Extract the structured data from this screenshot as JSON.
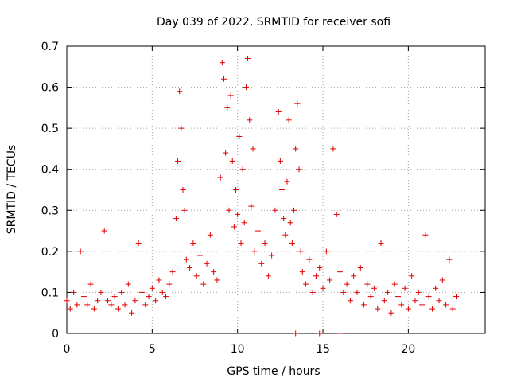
{
  "chart_data": {
    "type": "scatter",
    "title": "Day 039 of 2022, SRMTID for receiver sofi",
    "xlabel": "GPS time / hours",
    "ylabel": "SRMTID / TECUs",
    "xlim": [
      0,
      24.5
    ],
    "ylim": [
      0,
      0.7
    ],
    "xticks": [
      0,
      5,
      10,
      15,
      20
    ],
    "xtick_labels": [
      "0",
      "5",
      "10",
      "15",
      "20"
    ],
    "yticks": [
      0,
      0.1,
      0.2,
      0.3,
      0.4,
      0.5,
      0.6,
      0.7
    ],
    "ytick_labels": [
      "0",
      "0.1",
      "0.2",
      "0.3",
      "0.4",
      "0.5",
      "0.6",
      "0.7"
    ],
    "grid": true,
    "marker": "+",
    "series_color": "#e00000",
    "series": [
      {
        "name": "SRMTID",
        "x": [
          0.0,
          0.2,
          0.4,
          0.6,
          0.8,
          1.0,
          1.2,
          1.4,
          1.6,
          1.8,
          2.0,
          2.2,
          2.4,
          2.6,
          2.8,
          3.0,
          3.2,
          3.4,
          3.6,
          3.8,
          4.0,
          4.2,
          4.4,
          4.6,
          4.8,
          5.0,
          5.2,
          5.4,
          5.6,
          5.8,
          6.0,
          6.2,
          6.4,
          6.5,
          6.6,
          6.7,
          6.8,
          6.9,
          7.0,
          7.2,
          7.4,
          7.6,
          7.8,
          8.0,
          8.2,
          8.4,
          8.6,
          8.8,
          9.0,
          9.1,
          9.2,
          9.3,
          9.4,
          9.5,
          9.6,
          9.7,
          9.8,
          9.9,
          10.0,
          10.1,
          10.2,
          10.3,
          10.4,
          10.5,
          10.6,
          10.7,
          10.8,
          10.9,
          11.0,
          11.2,
          11.4,
          11.6,
          11.8,
          12.0,
          12.2,
          12.4,
          12.5,
          12.6,
          12.7,
          12.8,
          12.9,
          13.0,
          13.1,
          13.2,
          13.3,
          13.4,
          13.5,
          13.6,
          13.7,
          13.8,
          14.0,
          14.2,
          14.4,
          14.6,
          14.8,
          15.0,
          15.2,
          15.4,
          15.6,
          15.8,
          16.0,
          16.2,
          16.4,
          16.6,
          16.8,
          17.0,
          17.2,
          17.4,
          17.6,
          17.8,
          18.0,
          18.2,
          18.4,
          18.6,
          18.8,
          19.0,
          19.2,
          19.4,
          19.6,
          19.8,
          20.0,
          20.2,
          20.4,
          20.6,
          20.8,
          21.0,
          21.2,
          21.4,
          21.6,
          21.8,
          22.0,
          22.2,
          22.4,
          22.6,
          22.8,
          13.4,
          14.8,
          16.0
        ],
        "y": [
          0.08,
          0.06,
          0.1,
          0.07,
          0.2,
          0.09,
          0.07,
          0.12,
          0.06,
          0.08,
          0.1,
          0.25,
          0.08,
          0.07,
          0.09,
          0.06,
          0.1,
          0.07,
          0.12,
          0.05,
          0.08,
          0.22,
          0.1,
          0.07,
          0.09,
          0.11,
          0.08,
          0.13,
          0.1,
          0.09,
          0.12,
          0.15,
          0.28,
          0.42,
          0.59,
          0.5,
          0.35,
          0.3,
          0.18,
          0.16,
          0.22,
          0.14,
          0.19,
          0.12,
          0.17,
          0.24,
          0.15,
          0.13,
          0.38,
          0.66,
          0.62,
          0.44,
          0.55,
          0.3,
          0.58,
          0.42,
          0.26,
          0.35,
          0.29,
          0.48,
          0.22,
          0.4,
          0.27,
          0.6,
          0.67,
          0.52,
          0.31,
          0.45,
          0.2,
          0.25,
          0.17,
          0.22,
          0.14,
          0.19,
          0.3,
          0.54,
          0.42,
          0.35,
          0.28,
          0.24,
          0.37,
          0.52,
          0.27,
          0.22,
          0.3,
          0.45,
          0.56,
          0.4,
          0.2,
          0.15,
          0.12,
          0.18,
          0.1,
          0.14,
          0.16,
          0.11,
          0.2,
          0.13,
          0.45,
          0.29,
          0.15,
          0.1,
          0.12,
          0.08,
          0.14,
          0.1,
          0.16,
          0.07,
          0.12,
          0.09,
          0.11,
          0.06,
          0.22,
          0.08,
          0.1,
          0.05,
          0.12,
          0.09,
          0.07,
          0.11,
          0.06,
          0.14,
          0.08,
          0.1,
          0.07,
          0.24,
          0.09,
          0.06,
          0.11,
          0.08,
          0.13,
          0.07,
          0.18,
          0.06,
          0.09,
          0.0,
          0.0,
          0.0
        ]
      }
    ]
  }
}
